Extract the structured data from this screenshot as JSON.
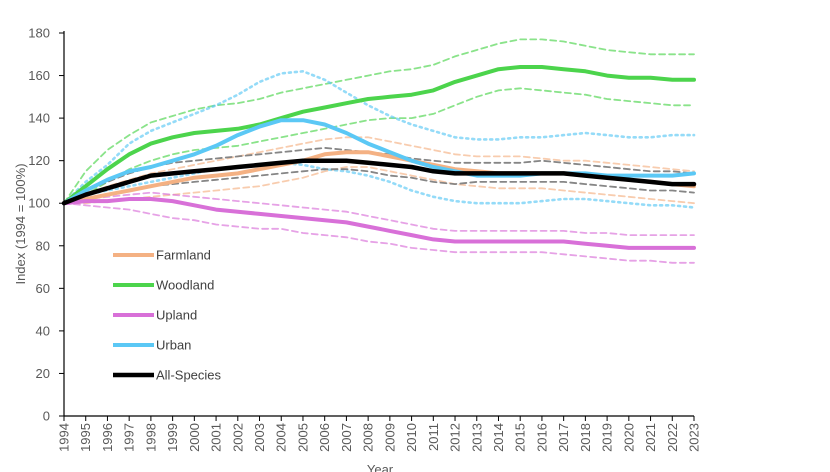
{
  "chart_data": {
    "type": "line",
    "title": "",
    "xlabel": "Year",
    "ylabel": "Index (1994 = 100%)",
    "xlim": [
      1994,
      2023
    ],
    "ylim": [
      0,
      180
    ],
    "yticks": [
      0,
      20,
      40,
      60,
      80,
      100,
      120,
      140,
      160,
      180
    ],
    "grid": false,
    "legend_position": "left-center",
    "x": [
      1994,
      1995,
      1996,
      1997,
      1998,
      1999,
      2000,
      2001,
      2002,
      2003,
      2004,
      2005,
      2006,
      2007,
      2008,
      2009,
      2010,
      2011,
      2012,
      2013,
      2014,
      2015,
      2016,
      2017,
      2018,
      2019,
      2020,
      2021,
      2022,
      2023
    ],
    "x_labels": [
      "1994",
      "1995",
      "1996",
      "1997",
      "1998",
      "1999",
      "2000",
      "2001",
      "2002",
      "2003",
      "2004",
      "2005",
      "2006",
      "2007",
      "2008",
      "2009",
      "2010",
      "2011",
      "2012",
      "2013",
      "2014",
      "2015",
      "2016",
      "2017",
      "2018",
      "2019",
      "2020",
      "2021",
      "2022",
      "2023"
    ],
    "series": [
      {
        "name": "Farmland",
        "color": "#F4B183",
        "values": [
          100,
          102,
          104,
          106,
          108,
          110,
          112,
          113,
          114,
          116,
          118,
          120,
          123,
          124,
          124,
          122,
          120,
          118,
          116,
          115,
          114,
          114,
          114,
          114,
          113,
          112,
          111,
          110,
          109,
          108
        ],
        "upper": [
          100,
          104,
          108,
          111,
          114,
          116,
          118,
          120,
          122,
          124,
          126,
          128,
          130,
          131,
          131,
          129,
          127,
          125,
          123,
          122,
          122,
          122,
          121,
          120,
          120,
          119,
          118,
          117,
          116,
          115
        ],
        "lower": [
          100,
          100,
          101,
          102,
          103,
          104,
          105,
          106,
          107,
          108,
          110,
          112,
          115,
          117,
          117,
          115,
          113,
          111,
          109,
          108,
          107,
          107,
          107,
          106,
          105,
          104,
          103,
          102,
          101,
          100
        ]
      },
      {
        "name": "Woodland",
        "color": "#4CD44C",
        "values": [
          100,
          108,
          116,
          123,
          128,
          131,
          133,
          134,
          135,
          137,
          140,
          143,
          145,
          147,
          149,
          150,
          151,
          153,
          157,
          160,
          163,
          164,
          164,
          163,
          162,
          160,
          159,
          159,
          158,
          158
        ],
        "upper": [
          100,
          115,
          125,
          132,
          138,
          141,
          144,
          146,
          147,
          149,
          152,
          154,
          156,
          158,
          160,
          162,
          163,
          165,
          169,
          172,
          175,
          177,
          177,
          176,
          174,
          172,
          171,
          170,
          170,
          170
        ],
        "lower": [
          100,
          104,
          110,
          116,
          120,
          123,
          125,
          126,
          127,
          129,
          131,
          133,
          135,
          137,
          139,
          140,
          140,
          142,
          146,
          150,
          153,
          154,
          153,
          152,
          151,
          149,
          148,
          147,
          146,
          146
        ]
      },
      {
        "name": "Upland",
        "color": "#D870D8",
        "values": [
          100,
          101,
          101,
          102,
          102,
          101,
          99,
          97,
          96,
          95,
          94,
          93,
          92,
          91,
          89,
          87,
          85,
          83,
          82,
          82,
          82,
          82,
          82,
          82,
          81,
          80,
          79,
          79,
          79,
          79
        ],
        "upper": [
          100,
          102,
          103,
          104,
          105,
          104,
          103,
          102,
          101,
          100,
          99,
          98,
          97,
          96,
          94,
          92,
          90,
          88,
          87,
          87,
          87,
          87,
          87,
          87,
          86,
          86,
          85,
          85,
          85,
          85
        ],
        "lower": [
          100,
          99,
          98,
          97,
          95,
          93,
          92,
          90,
          89,
          88,
          88,
          86,
          85,
          84,
          82,
          81,
          79,
          78,
          77,
          77,
          77,
          77,
          77,
          76,
          75,
          74,
          73,
          73,
          72,
          72
        ]
      },
      {
        "name": "Urban",
        "color": "#5BC8F5",
        "values": [
          100,
          106,
          111,
          115,
          117,
          120,
          123,
          127,
          132,
          136,
          139,
          139,
          137,
          133,
          128,
          124,
          120,
          117,
          115,
          113,
          113,
          113,
          114,
          114,
          114,
          113,
          113,
          113,
          113,
          114
        ],
        "upper": [
          100,
          110,
          118,
          128,
          134,
          138,
          142,
          146,
          151,
          157,
          161,
          162,
          158,
          152,
          146,
          141,
          137,
          134,
          131,
          130,
          130,
          131,
          131,
          132,
          133,
          132,
          131,
          131,
          132,
          132
        ],
        "lower": [
          100,
          104,
          106,
          108,
          110,
          112,
          114,
          116,
          117,
          118,
          119,
          118,
          116,
          115,
          113,
          110,
          106,
          103,
          101,
          100,
          100,
          100,
          101,
          102,
          102,
          101,
          100,
          99,
          99,
          98
        ]
      },
      {
        "name": "All-Species",
        "color": "#000000",
        "values": [
          100,
          104,
          107,
          110,
          113,
          114,
          115,
          116,
          117,
          118,
          119,
          120,
          120,
          120,
          119,
          118,
          117,
          115,
          114,
          114,
          114,
          114,
          114,
          114,
          113,
          112,
          111,
          110,
          109,
          109
        ],
        "upper": [
          100,
          106,
          110,
          114,
          117,
          119,
          120,
          121,
          122,
          123,
          124,
          125,
          126,
          125,
          124,
          123,
          121,
          120,
          119,
          119,
          119,
          119,
          120,
          119,
          118,
          117,
          116,
          115,
          115,
          114
        ],
        "lower": [
          100,
          102,
          104,
          106,
          108,
          109,
          110,
          111,
          112,
          113,
          114,
          115,
          116,
          116,
          115,
          113,
          112,
          110,
          109,
          110,
          110,
          110,
          110,
          110,
          109,
          108,
          107,
          106,
          106,
          105
        ]
      }
    ]
  }
}
